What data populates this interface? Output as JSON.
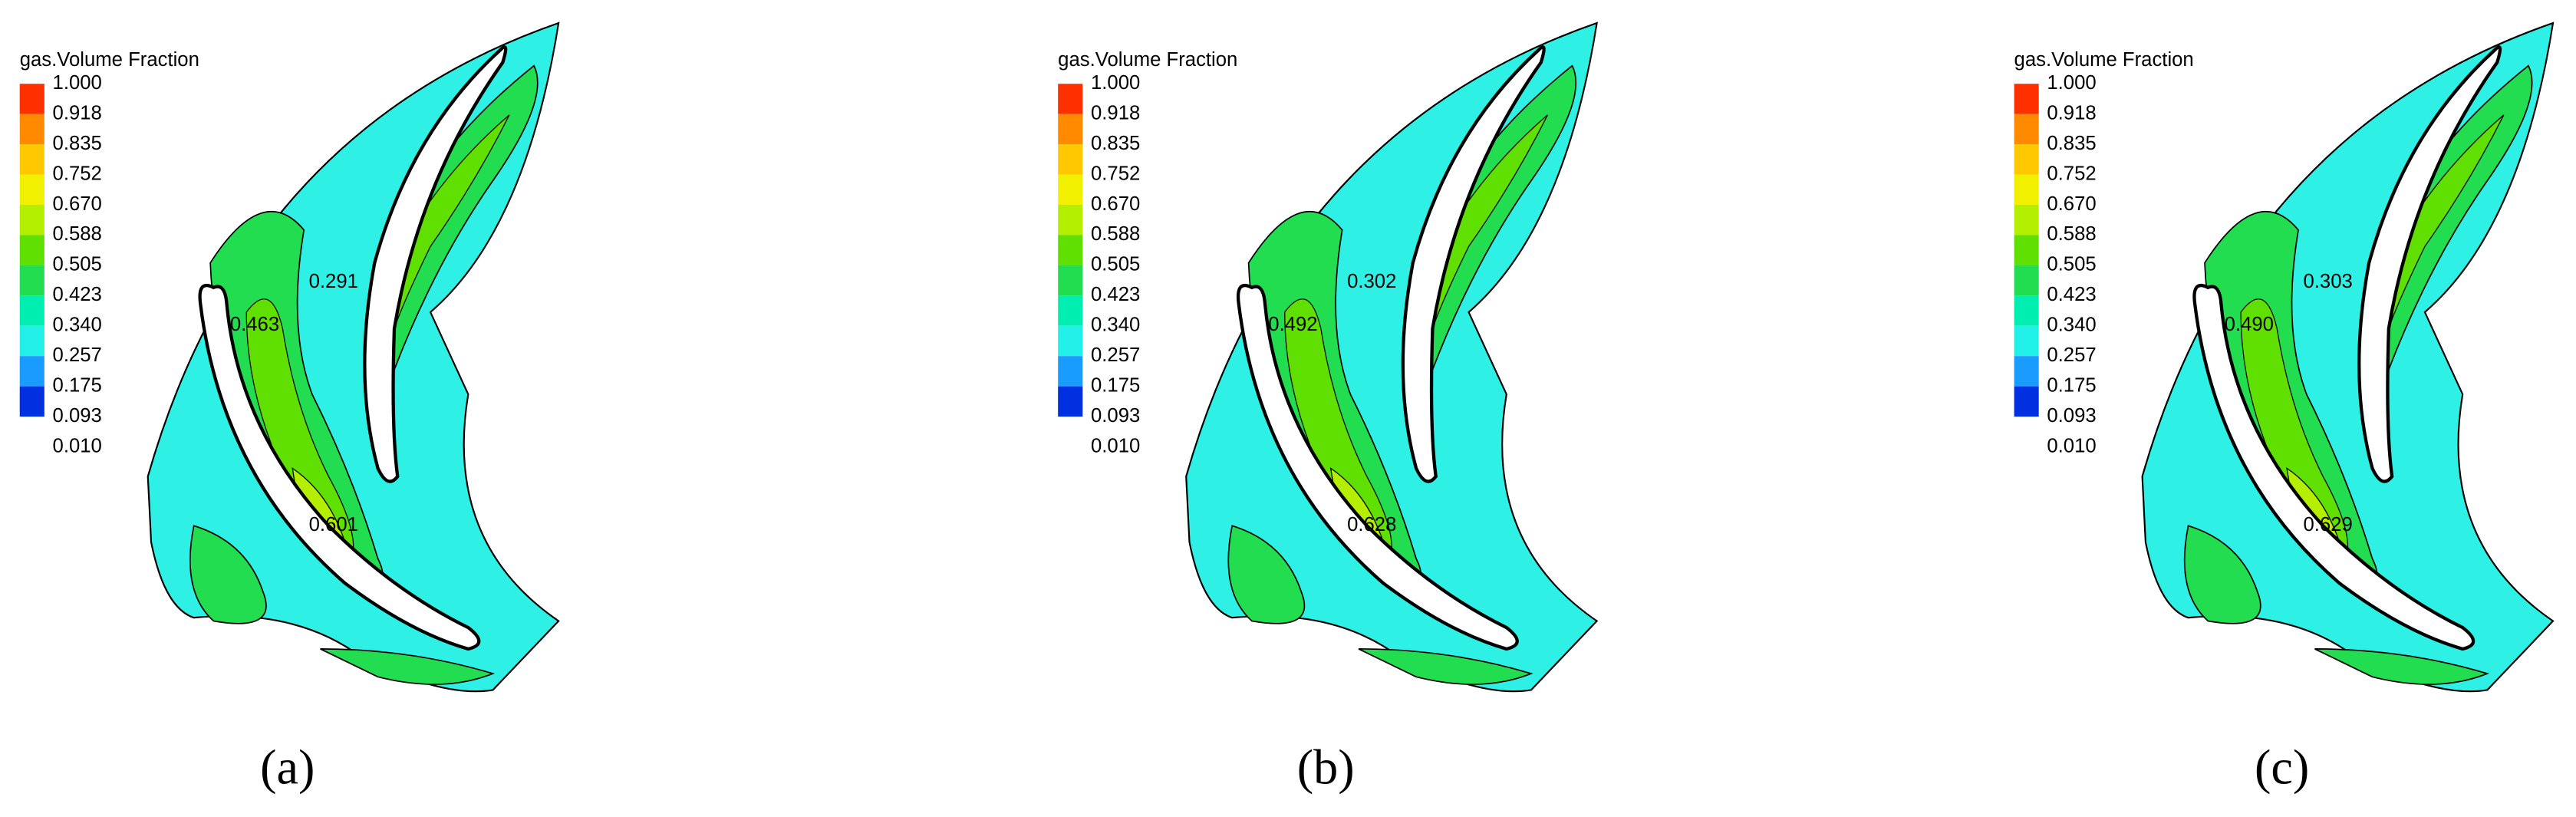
{
  "legend_colors": [
    "#ff3000",
    "#ff8a00",
    "#ffc800",
    "#f0f000",
    "#b4ee00",
    "#60e000",
    "#22dd50",
    "#00eeb0",
    "#20f0e8",
    "#1a9cff",
    "#0030e0"
  ],
  "panels": [
    {
      "legend": {
        "title": "gas.Volume Fraction",
        "ticks": [
          "1.000",
          "0.918",
          "0.835",
          "0.752",
          "0.670",
          "0.588",
          "0.505",
          "0.423",
          "0.340",
          "0.257",
          "0.175",
          "0.093",
          "0.010"
        ]
      },
      "contour_labels": [
        "0.291",
        "0.463",
        "0.601"
      ],
      "caption": "(a)"
    },
    {
      "legend": {
        "title": "gas.Volume Fraction",
        "ticks": [
          "1.000",
          "0.918",
          "0.835",
          "0.752",
          "0.670",
          "0.588",
          "0.505",
          "0.423",
          "0.340",
          "0.257",
          "0.175",
          "0.093",
          "0.010"
        ]
      },
      "contour_labels": [
        "0.302",
        "0.492",
        "0.628"
      ],
      "caption": "(b)"
    },
    {
      "legend": {
        "title": "gas.Volume Fraction",
        "ticks": [
          "1.000",
          "0.918",
          "0.835",
          "0.752",
          "0.670",
          "0.588",
          "0.505",
          "0.423",
          "0.340",
          "0.257",
          "0.175",
          "0.093",
          "0.010"
        ]
      },
      "contour_labels": [
        "0.303",
        "0.490",
        "0.629"
      ],
      "caption": "(c)"
    }
  ]
}
